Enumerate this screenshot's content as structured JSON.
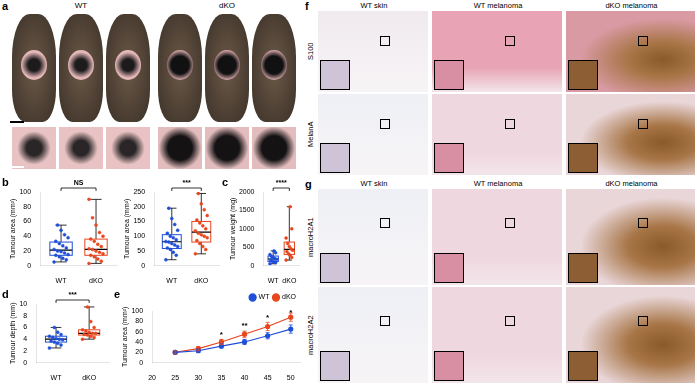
{
  "chart_data": [
    {
      "panel": "b",
      "type": "box",
      "categories": [
        "WT",
        "dKO"
      ],
      "colors": [
        "#1f4fd8",
        "#e8461e"
      ],
      "y_label": "Tumour area (mm²)",
      "ylim": [
        0,
        100
      ],
      "yticks": [
        0,
        20,
        40,
        60,
        80,
        100
      ],
      "boxes": [
        {
          "min": 5,
          "q1": 14,
          "median": 21,
          "q3": 32,
          "max": 55
        },
        {
          "min": 3,
          "q1": 14,
          "median": 22,
          "q3": 36,
          "max": 90
        }
      ],
      "points": [
        [
          5,
          8,
          10,
          12,
          14,
          15,
          17,
          19,
          20,
          22,
          24,
          27,
          30,
          33,
          38,
          42,
          48,
          55
        ],
        [
          3,
          6,
          9,
          12,
          14,
          16,
          18,
          20,
          22,
          23,
          26,
          29,
          33,
          36,
          40,
          45,
          55,
          65,
          90
        ]
      ],
      "annotation": "NS"
    },
    {
      "type": "box",
      "categories": [
        "WT",
        "dKO"
      ],
      "colors": [
        "#1f4fd8",
        "#e8461e"
      ],
      "y_label": "Tumour area (mm²)",
      "ylim": [
        0,
        250
      ],
      "yticks": [
        0,
        50,
        100,
        150,
        200,
        250
      ],
      "boxes": [
        {
          "min": 20,
          "q1": 58,
          "median": 81,
          "q3": 105,
          "max": 195
        },
        {
          "min": 40,
          "q1": 80,
          "median": 114,
          "q3": 150,
          "max": 245
        }
      ],
      "points": [
        [
          20,
          35,
          45,
          55,
          60,
          65,
          70,
          75,
          80,
          82,
          88,
          95,
          100,
          110,
          120,
          140,
          160,
          195
        ],
        [
          40,
          55,
          65,
          75,
          85,
          95,
          100,
          105,
          110,
          118,
          125,
          135,
          145,
          155,
          170,
          190,
          210,
          245
        ]
      ],
      "annotation": "***"
    },
    {
      "panel": "c",
      "type": "box",
      "categories": [
        "WT",
        "dKO"
      ],
      "colors": [
        "#1f4fd8",
        "#e8461e"
      ],
      "y_label": "Tumour weight (mg)",
      "ylim": [
        0,
        2000
      ],
      "yticks": [
        0,
        500,
        1000,
        1500,
        2000
      ],
      "boxes": [
        {
          "min": 50,
          "q1": 110,
          "median": 180,
          "q3": 260,
          "max": 400
        },
        {
          "min": 150,
          "q1": 300,
          "median": 440,
          "q3": 640,
          "max": 1600
        }
      ],
      "points": [
        [
          50,
          80,
          100,
          120,
          150,
          170,
          190,
          220,
          250,
          300,
          350,
          400
        ],
        [
          150,
          220,
          280,
          320,
          380,
          420,
          460,
          520,
          600,
          750,
          1000,
          1600
        ]
      ],
      "annotation": "****"
    },
    {
      "panel": "d",
      "type": "box",
      "categories": [
        "WT",
        "dKO"
      ],
      "colors": [
        "#1f4fd8",
        "#e8461e"
      ],
      "y_label": "Tumour depth (mm)",
      "ylim": [
        0,
        10
      ],
      "yticks": [
        0,
        2,
        4,
        6,
        8,
        10
      ],
      "boxes": [
        {
          "min": 2.5,
          "q1": 3.5,
          "median": 4,
          "q3": 4.5,
          "max": 6
        },
        {
          "min": 4,
          "q1": 4.7,
          "median": 5,
          "q3": 5.6,
          "max": 9.5
        }
      ],
      "points": [
        [
          2.5,
          3,
          3.3,
          3.5,
          3.7,
          3.9,
          4,
          4.1,
          4.3,
          4.5,
          4.8,
          5.2,
          6
        ],
        [
          4,
          4.3,
          4.5,
          4.7,
          4.8,
          5,
          5,
          5.2,
          5.4,
          5.6,
          6,
          7,
          9.5
        ]
      ],
      "annotation": "***"
    },
    {
      "panel": "e",
      "type": "line",
      "x": [
        25,
        30,
        35,
        40,
        45,
        50
      ],
      "series": [
        {
          "name": "WT",
          "color": "#1f4fd8",
          "marker": "circle",
          "values": [
            20,
            23,
            32,
            40,
            52,
            65
          ],
          "errors": [
            3,
            3,
            4,
            5,
            6,
            8
          ]
        },
        {
          "name": "dKO",
          "color": "#e8461e",
          "marker": "circle",
          "values": [
            20,
            27,
            40,
            55,
            70,
            88
          ],
          "errors": [
            3,
            4,
            5,
            6,
            8,
            8
          ]
        }
      ],
      "y_label": "Tumour area (mm²)",
      "xlim": [
        20,
        52
      ],
      "xticks": [
        20,
        25,
        30,
        35,
        40,
        45,
        50
      ],
      "ylim": [
        0,
        100
      ],
      "yticks": [
        0,
        20,
        40,
        60,
        80,
        100
      ],
      "legend": "upper right",
      "annotations": [
        {
          "x": 35,
          "label": "*"
        },
        {
          "x": 40,
          "label": "**"
        },
        {
          "x": 45,
          "label": "*"
        },
        {
          "x": 50,
          "label": "*"
        }
      ]
    }
  ],
  "figure": {
    "panels": [
      {
        "panel": "a",
        "groups": [
          "WT",
          "dKO"
        ]
      },
      {
        "panel": "f",
        "columns": [
          "WT skin",
          "WT melanoma",
          "dKO melanoma"
        ],
        "rows": [
          "S100",
          "MelanA"
        ]
      },
      {
        "panel": "g",
        "columns": [
          "WT skin",
          "WT melanoma",
          "dKO melanoma"
        ],
        "rows": [
          "macroH2A1",
          "macroH2A2"
        ]
      }
    ]
  }
}
